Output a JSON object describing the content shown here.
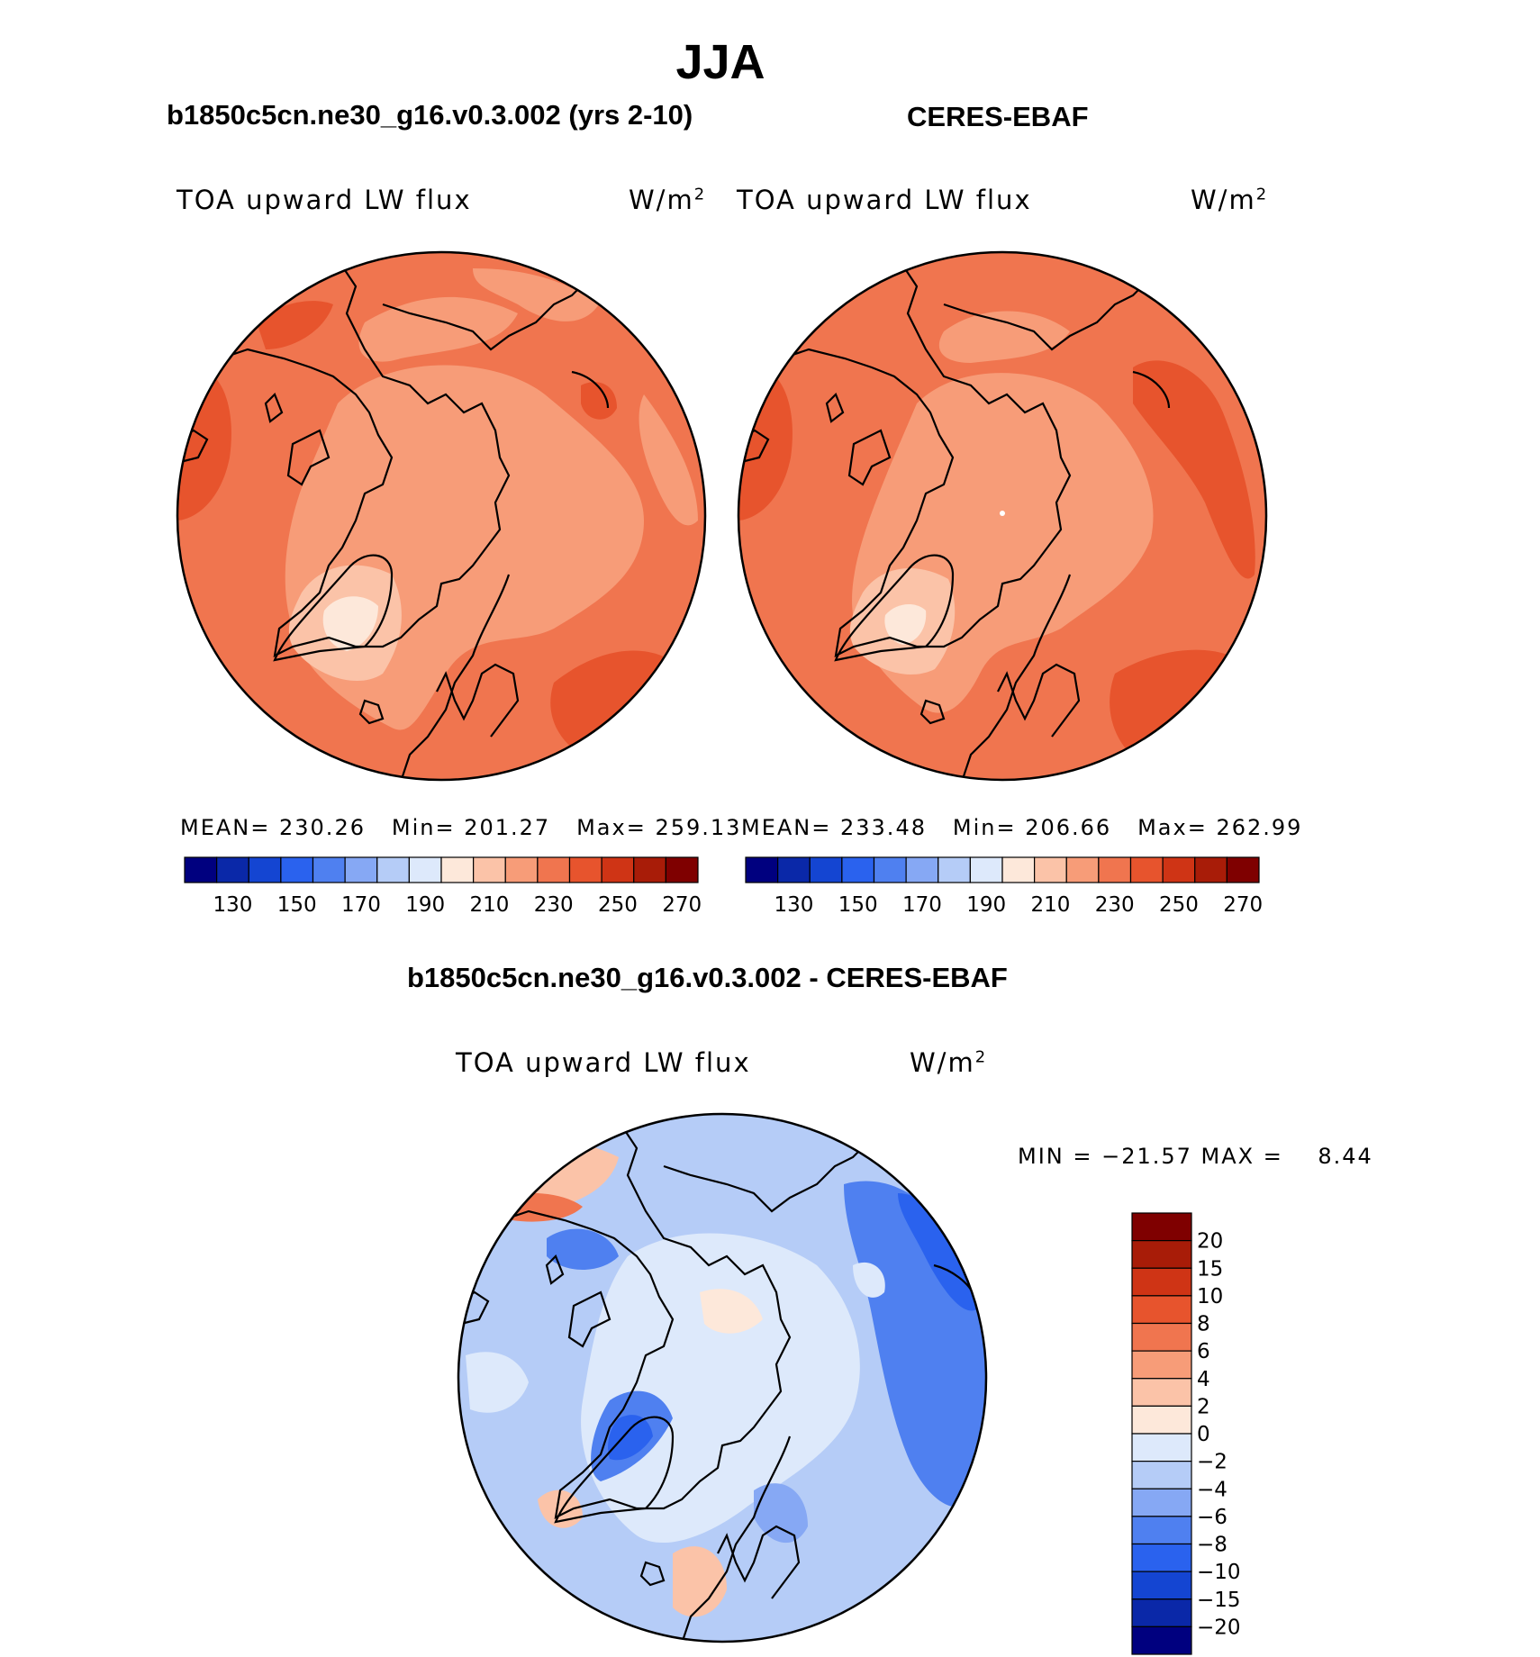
{
  "main_title": "JJA",
  "panels": [
    {
      "title": "b1850c5cn.ne30_g16.v0.3.002 (yrs 2-10)",
      "var_label": "TOA upward LW flux",
      "units": "W/m",
      "units_exp": "2",
      "mean_label": "MEAN=",
      "mean": "230.26",
      "min_label": "Min=",
      "min": "201.27",
      "max_label": "Max=",
      "max": "259.13"
    },
    {
      "title": "CERES-EBAF",
      "var_label": "TOA upward LW flux",
      "units": "W/m",
      "units_exp": "2",
      "mean_label": "MEAN=",
      "mean": "233.48",
      "min_label": "Min=",
      "min": "206.66",
      "max_label": "Max=",
      "max": "262.99"
    }
  ],
  "diff_panel": {
    "title": "b1850c5cn.ne30_g16.v0.3.002 - CERES-EBAF",
    "var_label": "TOA upward LW flux",
    "units": "W/m",
    "units_exp": "2",
    "minmax_text": "MIN = −21.57 MAX =    8.44"
  },
  "chart_data": [
    {
      "type": "heatmap",
      "projection": "north polar stereographic",
      "title": "b1850c5cn.ne30_g16.v0.3.002 (yrs 2-10)",
      "variable": "TOA upward LW flux",
      "units": "W/m2",
      "mean": 230.26,
      "min": 201.27,
      "max": 259.13,
      "colorbar_tick_labels": [
        "130",
        "150",
        "170",
        "190",
        "210",
        "230",
        "250",
        "270"
      ],
      "colorbar_colors": [
        "#00007f",
        "#0a28a8",
        "#1445d2",
        "#2a62ee",
        "#4f80f0",
        "#86a8f4",
        "#b5ccf7",
        "#dde9fb",
        "#fde8da",
        "#fbc3a8",
        "#f79c78",
        "#f0754f",
        "#e7542d",
        "#cf3415",
        "#a81c08",
        "#7f0000"
      ]
    },
    {
      "type": "heatmap",
      "projection": "north polar stereographic",
      "title": "CERES-EBAF",
      "variable": "TOA upward LW flux",
      "units": "W/m2",
      "mean": 233.48,
      "min": 206.66,
      "max": 262.99,
      "colorbar_tick_labels": [
        "130",
        "150",
        "170",
        "190",
        "210",
        "230",
        "250",
        "270"
      ],
      "colorbar_colors": [
        "#00007f",
        "#0a28a8",
        "#1445d2",
        "#2a62ee",
        "#4f80f0",
        "#86a8f4",
        "#b5ccf7",
        "#dde9fb",
        "#fde8da",
        "#fbc3a8",
        "#f79c78",
        "#f0754f",
        "#e7542d",
        "#cf3415",
        "#a81c08",
        "#7f0000"
      ]
    },
    {
      "type": "heatmap",
      "projection": "north polar stereographic",
      "title": "b1850c5cn.ne30_g16.v0.3.002 - CERES-EBAF",
      "variable": "TOA upward LW flux",
      "units": "W/m2",
      "min": -21.57,
      "max": 8.44,
      "colorbar_tick_labels": [
        "20",
        "15",
        "10",
        "8",
        "6",
        "4",
        "2",
        "0",
        "−2",
        "−4",
        "−6",
        "−8",
        "−10",
        "−15",
        "−20"
      ],
      "colorbar_colors": [
        "#7f0000",
        "#a81c08",
        "#cf3415",
        "#e7542d",
        "#f0754f",
        "#f79c78",
        "#fbc3a8",
        "#fde8da",
        "#dde9fb",
        "#b5ccf7",
        "#86a8f4",
        "#4f80f0",
        "#2a62ee",
        "#1445d2",
        "#0a28a8",
        "#00007f"
      ]
    }
  ]
}
